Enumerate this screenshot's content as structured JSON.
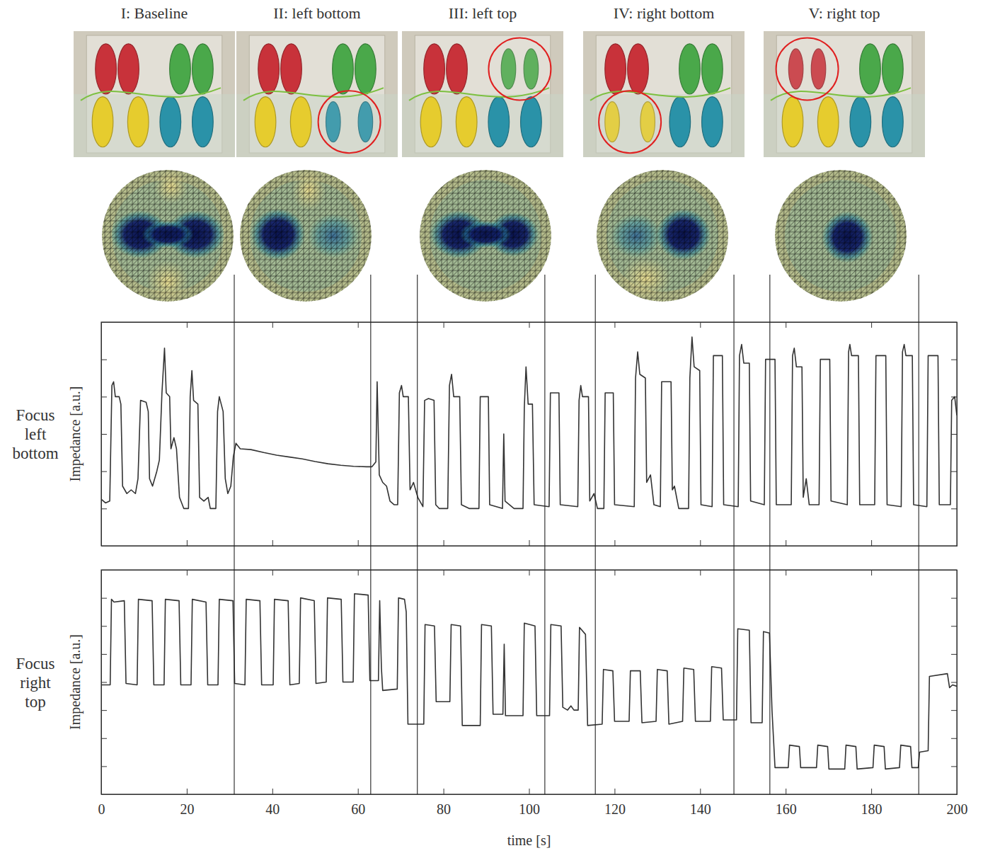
{
  "panels": [
    "I: Baseline",
    "II: left bottom",
    "III: left top",
    "IV: right bottom",
    "V: right top"
  ],
  "event_times": [
    31.1,
    63.0,
    73.9,
    103.7,
    115.5,
    147.9,
    156.3,
    191.1
  ],
  "chart_data": [
    {
      "type": "line",
      "title": "Focus left bottom",
      "y_label": "Impedance [a.u.]",
      "xlim": [
        0,
        200
      ],
      "xticks": [
        0,
        20,
        40,
        60,
        80,
        100,
        120,
        140,
        160,
        180,
        200
      ],
      "ylim": [
        0,
        6
      ],
      "yticks": [
        1,
        2,
        3,
        4,
        5
      ],
      "tick_labels": false,
      "x": [
        0,
        1,
        2,
        2.5,
        2.9,
        3.3,
        4.2,
        4.6,
        5.0,
        6,
        7,
        8,
        8.6,
        9.2,
        10.5,
        11.0,
        11.3,
        12,
        13,
        13.6,
        14.2,
        14.8,
        15.2,
        16,
        16.3,
        17,
        17.6,
        18.3,
        19.3,
        20.4,
        20.8,
        21.2,
        21.6,
        22.6,
        23,
        24,
        25,
        25.5,
        26.8,
        27.2,
        27.6,
        28.5,
        29.0,
        29.6,
        30.3,
        30.9,
        31.5,
        32.5,
        35,
        38,
        41,
        44,
        47,
        50,
        53,
        56,
        59,
        62,
        63.3,
        64.2,
        64.5,
        65.0,
        65.8,
        66.7,
        67.5,
        68.5,
        69.3,
        69.7,
        70.2,
        70.6,
        71.8,
        72.2,
        73,
        74,
        75.2,
        75.6,
        76.5,
        77.8,
        78.2,
        79,
        81.0,
        81.4,
        81.9,
        82.4,
        83.8,
        84.2,
        86,
        88.3,
        88.6,
        90.5,
        90.8,
        93.8,
        94.1,
        94.4,
        96.5,
        98.6,
        98.9,
        99.3,
        99.8,
        100.8,
        101.2,
        104.7,
        105.0,
        107.0,
        107.3,
        111.4,
        111.7,
        112.1,
        112.5,
        113.9,
        114.2,
        115.2,
        116,
        117.5,
        117.8,
        119.7,
        120.0,
        124.6,
        124.9,
        125.4,
        125.9,
        127.2,
        127.5,
        128.4,
        129.2,
        130.7,
        131.0,
        133.2,
        133.5,
        134,
        135,
        137.3,
        137.6,
        138.1,
        138.6,
        139.9,
        140.2,
        142.8,
        143.1,
        145.2,
        145.5,
        148.9,
        149.2,
        149.7,
        150.2,
        151.5,
        151.8,
        155,
        155.3,
        157.5,
        157.8,
        161.3,
        161.6,
        162.0,
        162.5,
        163.8,
        164.1,
        164.8,
        165.5,
        167.8,
        168.1,
        170.3,
        170.6,
        174.4,
        174.7,
        175.0,
        175.4,
        177,
        177.3,
        180.8,
        181.1,
        183.4,
        183.7,
        187,
        187.3,
        187.7,
        188.1,
        189.6,
        189.9,
        193.0,
        193.3,
        195.6,
        195.9,
        198.5,
        198.8,
        199.5,
        200
      ],
      "series": [
        {
          "color": "#333333",
          "values": [
            1.25,
            1.15,
            1.2,
            4.3,
            4.4,
            4.0,
            4.0,
            3.8,
            1.6,
            1.4,
            1.5,
            1.4,
            1.8,
            3.9,
            3.85,
            3.6,
            1.8,
            1.6,
            2.0,
            2.3,
            4.1,
            5.3,
            4.1,
            4.0,
            2.6,
            2.9,
            2.6,
            1.3,
            1.0,
            1.0,
            4.0,
            4.7,
            3.9,
            3.8,
            1.3,
            1.2,
            1.3,
            1.0,
            1.0,
            3.6,
            4.0,
            3.6,
            1.8,
            1.4,
            1.6,
            2.4,
            2.75,
            2.6,
            2.58,
            2.5,
            2.43,
            2.38,
            2.33,
            2.26,
            2.2,
            2.16,
            2.13,
            2.12,
            2.12,
            2.25,
            4.4,
            1.9,
            1.7,
            1.6,
            1.2,
            1.1,
            1.1,
            4.1,
            4.3,
            4.0,
            4.0,
            1.5,
            1.7,
            1.3,
            1.05,
            3.9,
            3.95,
            3.9,
            1.1,
            1.0,
            1.0,
            4.3,
            4.6,
            4.0,
            4.0,
            1.1,
            1.0,
            1.0,
            4.0,
            4.0,
            1.1,
            1.0,
            3.0,
            1.2,
            1.0,
            1.0,
            3.7,
            4.8,
            3.8,
            3.8,
            1.1,
            1.05,
            4.1,
            4.1,
            1.1,
            1.05,
            3.9,
            4.3,
            4.0,
            4.0,
            1.2,
            1.4,
            1.0,
            1.0,
            4.1,
            4.1,
            1.1,
            1.05,
            4.5,
            5.2,
            4.6,
            4.5,
            1.7,
            1.9,
            1.1,
            1.05,
            4.4,
            4.4,
            1.5,
            1.6,
            1.0,
            1.0,
            4.5,
            5.6,
            4.8,
            4.7,
            1.1,
            1.05,
            5.1,
            5.1,
            1.1,
            1.05,
            5.1,
            5.4,
            4.9,
            4.9,
            1.2,
            1.1,
            5.0,
            5.0,
            1.1,
            1.1,
            5.1,
            5.3,
            4.8,
            4.8,
            1.3,
            1.8,
            1.1,
            1.1,
            5.0,
            5.0,
            1.2,
            1.1,
            5.2,
            5.4,
            5.1,
            5.1,
            1.1,
            1.1,
            5.1,
            5.1,
            1.1,
            1.05,
            5.2,
            5.4,
            5.1,
            5.1,
            1.1,
            1.05,
            5.1,
            5.1,
            1.1,
            1.1,
            3.9,
            4.0,
            3.5
          ]
        }
      ]
    },
    {
      "type": "line",
      "title": "Focus right top",
      "y_label": "Impedance [a.u.]",
      "x_label": "time [s]",
      "xlim": [
        0,
        200
      ],
      "xticks": [
        0,
        20,
        40,
        60,
        80,
        100,
        120,
        140,
        160,
        180,
        200
      ],
      "ylim": [
        0,
        8
      ],
      "yticks": [
        1,
        2,
        3,
        4,
        5,
        6,
        7
      ],
      "tick_labels": "x",
      "x": [
        0,
        2.1,
        2.4,
        3.0,
        5.4,
        5.8,
        8.4,
        8.7,
        11.9,
        12.3,
        14.7,
        15.0,
        18.2,
        18.6,
        21.0,
        21.3,
        24.5,
        24.9,
        27.3,
        27.6,
        30.8,
        31.2,
        33.6,
        33.9,
        37.1,
        37.5,
        40.2,
        40.5,
        43.7,
        44.1,
        46.3,
        46.6,
        49.8,
        50.2,
        52.6,
        52.9,
        56.1,
        56.5,
        58.9,
        59.2,
        62.4,
        62.8,
        64.8,
        65.1,
        65.5,
        65.8,
        69.2,
        69.5,
        70.9,
        71.3,
        71.7,
        75.4,
        75.7,
        77.9,
        78.3,
        81.5,
        81.8,
        84.0,
        84.4,
        88.6,
        88.9,
        91.2,
        91.6,
        93.9,
        94.2,
        94.5,
        98.6,
        98.9,
        101.4,
        101.8,
        104.8,
        105.1,
        107.5,
        107.9,
        109,
        109.8,
        110.5,
        111.5,
        111.8,
        113.2,
        113.7,
        117.1,
        117.4,
        119.6,
        120.0,
        123.4,
        123.7,
        126,
        126.4,
        129.7,
        130.0,
        132.3,
        132.7,
        135.9,
        136.2,
        138.5,
        138.9,
        142.4,
        142.7,
        145,
        145.4,
        148.5,
        148.8,
        151.5,
        151.9,
        154.5,
        154.8,
        156.2,
        156.8,
        157.5,
        160.6,
        160.9,
        163.2,
        163.5,
        167.2,
        167.5,
        169.8,
        170.1,
        173.8,
        174.1,
        176.4,
        176.7,
        180.4,
        180.7,
        183,
        183.3,
        186.6,
        186.9,
        189.2,
        189.5,
        191.0,
        191.3,
        193.3,
        193.6,
        197.8,
        198.3,
        199,
        200
      ],
      "series": [
        {
          "color": "#333333",
          "values": [
            3.9,
            3.9,
            6.95,
            6.85,
            6.9,
            3.95,
            3.9,
            6.95,
            6.9,
            3.9,
            3.9,
            6.95,
            6.9,
            3.9,
            3.9,
            6.95,
            6.85,
            3.9,
            3.9,
            6.95,
            6.9,
            3.95,
            3.9,
            6.95,
            6.9,
            3.9,
            3.9,
            6.95,
            6.9,
            3.9,
            3.95,
            7.0,
            6.9,
            3.95,
            4.0,
            7.0,
            6.95,
            4.0,
            4.0,
            7.15,
            7.1,
            4.05,
            4.05,
            6.9,
            4.5,
            3.7,
            3.75,
            7.0,
            6.95,
            6.5,
            2.5,
            2.5,
            6.05,
            6.0,
            3.3,
            3.3,
            6.05,
            6.0,
            2.45,
            2.45,
            6.05,
            6.0,
            2.85,
            2.85,
            5.35,
            2.8,
            2.8,
            6.1,
            6.0,
            2.8,
            2.8,
            6.05,
            6.0,
            3.1,
            3.0,
            3.15,
            3.0,
            3.0,
            5.95,
            5.7,
            2.45,
            2.5,
            4.45,
            4.4,
            2.6,
            2.6,
            4.4,
            4.4,
            2.55,
            2.6,
            4.45,
            4.4,
            2.5,
            2.6,
            4.5,
            4.45,
            2.6,
            2.6,
            4.55,
            4.5,
            2.65,
            2.65,
            5.9,
            5.85,
            2.55,
            2.55,
            5.8,
            5.75,
            3.0,
            0.95,
            0.95,
            1.75,
            1.7,
            0.95,
            0.95,
            1.75,
            1.7,
            0.9,
            0.9,
            1.75,
            1.7,
            0.9,
            0.95,
            1.75,
            1.7,
            0.9,
            0.95,
            1.75,
            1.7,
            0.95,
            0.95,
            1.5,
            1.55,
            4.2,
            4.3,
            3.8,
            3.9,
            3.85
          ]
        }
      ]
    }
  ]
}
